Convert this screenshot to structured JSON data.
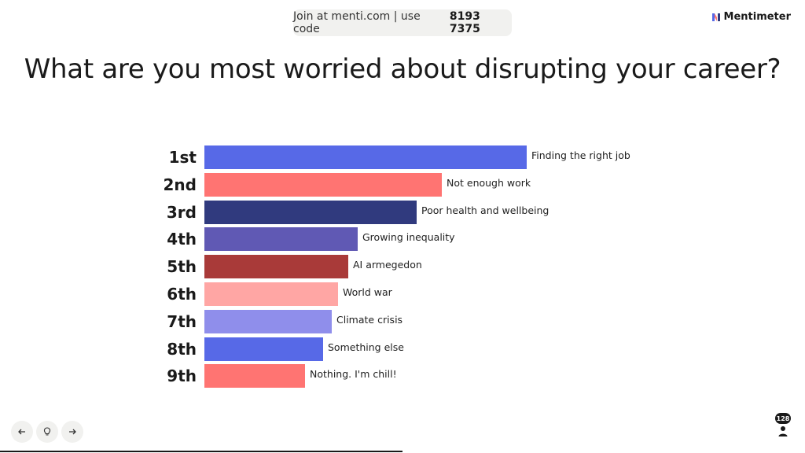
{
  "header": {
    "join_text": "Join at menti.com | use code",
    "join_code": "8193 7375",
    "brand": "Mentimeter"
  },
  "question": "What are you most worried about disrupting your career?",
  "ranking": {
    "items": [
      {
        "rank": "1st",
        "label": "Finding the right job",
        "value": 100,
        "color": "#5769e7"
      },
      {
        "rank": "2nd",
        "label": "Not enough work",
        "value": 73.7,
        "color": "#ff7472"
      },
      {
        "rank": "3rd",
        "label": "Poor health and wellbeing",
        "value": 65.9,
        "color": "#303a7e"
      },
      {
        "rank": "4th",
        "label": "Growing inequality",
        "value": 47.6,
        "color": "#6059b4"
      },
      {
        "rank": "5th",
        "label": "AI armegedon",
        "value": 44.6,
        "color": "#a93a39"
      },
      {
        "rank": "6th",
        "label": "World war",
        "value": 41.5,
        "color": "#ffa6a4"
      },
      {
        "rank": "7th",
        "label": "Climate crisis",
        "value": 39.5,
        "color": "#8f8eeb"
      },
      {
        "rank": "8th",
        "label": "Something else",
        "value": 36.8,
        "color": "#5769e7"
      },
      {
        "rank": "9th",
        "label": "Nothing. I'm chill!",
        "value": 31.2,
        "color": "#ff7472"
      }
    ]
  },
  "footer": {
    "participant_count": "128",
    "icons": {
      "back": "arrow-left-icon",
      "hint": "lightbulb-icon",
      "next": "arrow-right-icon"
    }
  }
}
